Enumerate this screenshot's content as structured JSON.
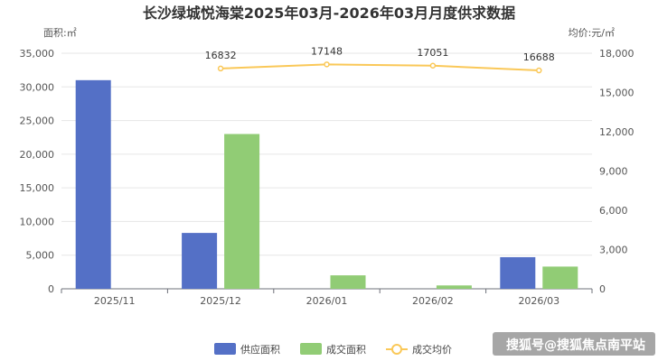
{
  "chart_data": {
    "type": "bar",
    "title": "长沙绿城悦海棠2025年03月-2026年03月月度供求数据",
    "left_axis_unit": "面积:㎡",
    "right_axis_unit": "均价:元/㎡",
    "categories": [
      "2025/11",
      "2025/12",
      "2026/01",
      "2026/02",
      "2026/03"
    ],
    "ylim_left": [
      0,
      35000
    ],
    "yticks_left": [
      0,
      5000,
      10000,
      15000,
      20000,
      25000,
      30000,
      35000
    ],
    "ytick_labels_left": [
      "0",
      "5,000",
      "10,000",
      "15,000",
      "20,000",
      "25,000",
      "30,000",
      "35,000"
    ],
    "ylim_right": [
      0,
      18000
    ],
    "yticks_right": [
      0,
      3000,
      6000,
      9000,
      12000,
      15000,
      18000
    ],
    "ytick_labels_right": [
      "0",
      "3,000",
      "6,000",
      "9,000",
      "12,000",
      "15,000",
      "18,000"
    ],
    "series": [
      {
        "name": "供应面积",
        "type": "bar",
        "axis": "left",
        "color": "#5470c6",
        "values": [
          31000,
          8300,
          0,
          0,
          4700
        ]
      },
      {
        "name": "成交面积",
        "type": "bar",
        "axis": "left",
        "color": "#91cc75",
        "values": [
          0,
          23000,
          2000,
          500,
          3300
        ]
      },
      {
        "name": "成交均价",
        "type": "line",
        "axis": "right",
        "color": "#fac858",
        "values": [
          null,
          16832,
          17148,
          17051,
          16688
        ],
        "labels": [
          "",
          "16832",
          "17148",
          "17051",
          "16688"
        ]
      }
    ],
    "grid": true,
    "legend_position": "bottom"
  },
  "watermark": "搜狐号@搜狐焦点南平站"
}
